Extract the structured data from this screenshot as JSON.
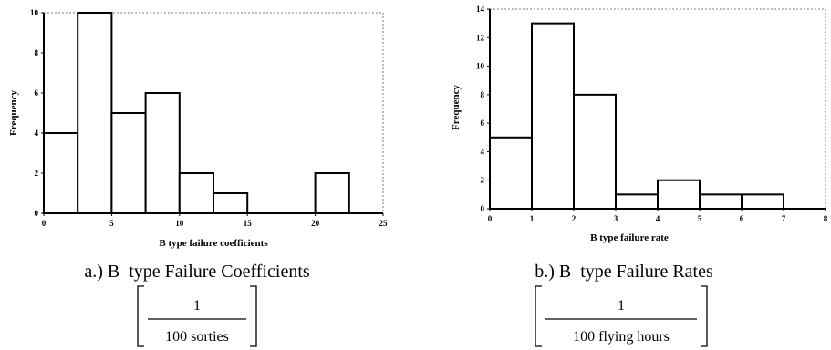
{
  "chart_data": [
    {
      "type": "bar",
      "subtitle": "a.) B–type Failure Coefficients",
      "unit_numerator": "1",
      "unit_denominator": "100 sorties",
      "xlabel": "B type failure coefficients",
      "ylabel": "Frequency",
      "xlim": [
        0,
        25
      ],
      "ylim": [
        0,
        10
      ],
      "xticks": [
        "0",
        "5",
        "10",
        "15",
        "20",
        "25"
      ],
      "yticks": [
        "0",
        "2",
        "4",
        "6",
        "8",
        "10"
      ],
      "bins": [
        {
          "x0": 0,
          "x1": 2.5,
          "value": 4
        },
        {
          "x0": 2.5,
          "x1": 5,
          "value": 10
        },
        {
          "x0": 5,
          "x1": 7.5,
          "value": 5
        },
        {
          "x0": 7.5,
          "x1": 10,
          "value": 6
        },
        {
          "x0": 10,
          "x1": 12.5,
          "value": 2
        },
        {
          "x0": 12.5,
          "x1": 15,
          "value": 1
        },
        {
          "x0": 20,
          "x1": 22.5,
          "value": 2
        }
      ]
    },
    {
      "type": "bar",
      "subtitle": "b.) B–type Failure Rates",
      "unit_numerator": "1",
      "unit_denominator": "100 flying hours",
      "xlabel": "B type failure rate",
      "ylabel": "Frequency",
      "xlim": [
        0,
        8
      ],
      "ylim": [
        0,
        14
      ],
      "xticks": [
        "0",
        "1",
        "2",
        "3",
        "4",
        "5",
        "6",
        "7",
        "8"
      ],
      "yticks": [
        "0",
        "2",
        "4",
        "6",
        "8",
        "10",
        "12",
        "14"
      ],
      "bins": [
        {
          "x0": 0,
          "x1": 1,
          "value": 5
        },
        {
          "x0": 1,
          "x1": 2,
          "value": 13
        },
        {
          "x0": 2,
          "x1": 3,
          "value": 8
        },
        {
          "x0": 3,
          "x1": 4,
          "value": 1
        },
        {
          "x0": 4,
          "x1": 5,
          "value": 2
        },
        {
          "x0": 5,
          "x1": 6,
          "value": 1
        },
        {
          "x0": 6,
          "x1": 7,
          "value": 1
        }
      ]
    }
  ]
}
